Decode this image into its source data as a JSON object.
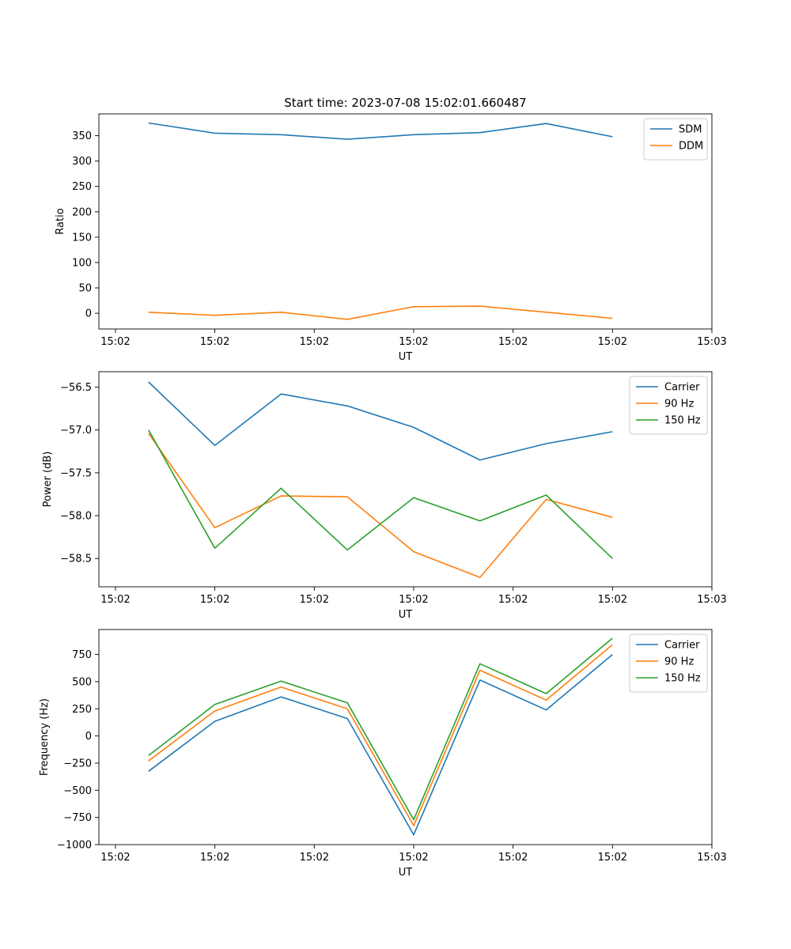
{
  "colors": {
    "blue": "#1f77b4",
    "orange": "#ff7f0e",
    "green": "#2ca02c"
  },
  "chart_data": [
    {
      "type": "line",
      "title": "Start time: 2023-07-08 15:02:01.660487",
      "xlabel": "UT",
      "ylabel": "Ratio",
      "x": [
        1,
        2,
        3,
        4,
        5,
        6,
        7,
        8
      ],
      "xlim": [
        0.25,
        9.5
      ],
      "x_ticks": [
        0.5,
        2.0,
        3.5,
        5.0,
        6.5,
        8.0,
        9.5
      ],
      "x_tick_labels": [
        "15:02",
        "15:02",
        "15:02",
        "15:02",
        "15:02",
        "15:02",
        "15:03"
      ],
      "ylim": [
        -31,
        393
      ],
      "y_ticks": [
        0,
        50,
        100,
        150,
        200,
        250,
        300,
        350
      ],
      "y_tick_labels": [
        "0",
        "50",
        "100",
        "150",
        "200",
        "250",
        "300",
        "350"
      ],
      "legend_position": "top-right",
      "series": [
        {
          "name": "SDM",
          "color": "#1f77b4",
          "values": [
            375,
            355,
            352,
            343,
            352,
            356,
            374,
            348
          ]
        },
        {
          "name": "DDM",
          "color": "#ff7f0e",
          "values": [
            2,
            -4,
            2,
            -12,
            13,
            14,
            2,
            -10
          ]
        }
      ]
    },
    {
      "type": "line",
      "title": "",
      "xlabel": "UT",
      "ylabel": "Power (dB)",
      "x": [
        1,
        2,
        3,
        4,
        5,
        6,
        7,
        8
      ],
      "xlim": [
        0.25,
        9.5
      ],
      "x_ticks": [
        0.5,
        2.0,
        3.5,
        5.0,
        6.5,
        8.0,
        9.5
      ],
      "x_tick_labels": [
        "15:02",
        "15:02",
        "15:02",
        "15:02",
        "15:02",
        "15:02",
        "15:03"
      ],
      "ylim": [
        -58.83,
        -56.32
      ],
      "y_ticks": [
        -58.5,
        -58.0,
        -57.5,
        -57.0,
        -56.5
      ],
      "y_tick_labels": [
        "−58.5",
        "−58.0",
        "−57.5",
        "−57.0",
        "−56.5"
      ],
      "legend_position": "top-right",
      "series": [
        {
          "name": "Carrier",
          "color": "#1f77b4",
          "values": [
            -56.44,
            -57.18,
            -56.58,
            -56.72,
            -56.97,
            -57.35,
            -57.16,
            -57.02
          ]
        },
        {
          "name": "90 Hz",
          "color": "#ff7f0e",
          "values": [
            -57.04,
            -58.14,
            -57.77,
            -57.78,
            -58.42,
            -58.72,
            -57.81,
            -58.02
          ]
        },
        {
          "name": "150 Hz",
          "color": "#2ca02c",
          "values": [
            -57.0,
            -58.38,
            -57.68,
            -58.4,
            -57.79,
            -58.06,
            -57.76,
            -58.5
          ]
        }
      ]
    },
    {
      "type": "line",
      "title": "",
      "xlabel": "UT",
      "ylabel": "Frequency (Hz)",
      "x": [
        1,
        2,
        3,
        4,
        5,
        6,
        7,
        8
      ],
      "xlim": [
        0.25,
        9.5
      ],
      "x_ticks": [
        0.5,
        2.0,
        3.5,
        5.0,
        6.5,
        8.0,
        9.5
      ],
      "x_tick_labels": [
        "15:02",
        "15:02",
        "15:02",
        "15:02",
        "15:02",
        "15:02",
        "15:03"
      ],
      "ylim": [
        -1000,
        980
      ],
      "y_ticks": [
        -1000,
        -750,
        -500,
        -250,
        0,
        250,
        500,
        750
      ],
      "y_tick_labels": [
        "−1000",
        "−750",
        "−500",
        "−250",
        "0",
        "250",
        "500",
        "750"
      ],
      "legend_position": "top-right",
      "series": [
        {
          "name": "Carrier",
          "color": "#1f77b4",
          "values": [
            -325,
            135,
            360,
            160,
            -910,
            515,
            240,
            750
          ]
        },
        {
          "name": "90 Hz",
          "color": "#ff7f0e",
          "values": [
            -230,
            230,
            450,
            250,
            -825,
            605,
            330,
            840
          ]
        },
        {
          "name": "150 Hz",
          "color": "#2ca02c",
          "values": [
            -180,
            290,
            505,
            305,
            -770,
            665,
            390,
            900
          ]
        }
      ]
    }
  ]
}
